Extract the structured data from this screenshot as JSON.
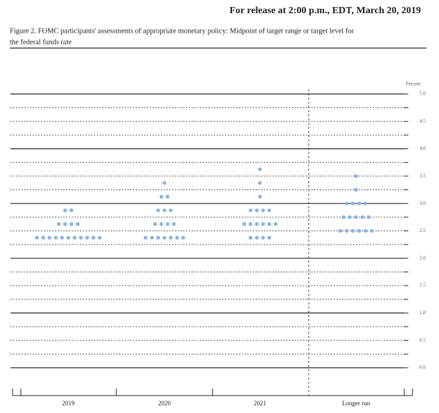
{
  "header": "For release at 2:00 p.m., EDT, March 20, 2019",
  "chart_data": {
    "type": "dot",
    "title": "Figure 2. FOMC participants' assessments of appropriate monetary policy: Midpoint of target range or target level for",
    "subtitle": "the federal funds rate",
    "y_label": "Percent",
    "categories": [
      "2019",
      "2020",
      "2021",
      "Longer run"
    ],
    "color": "#8db3dd",
    "ylim": [
      0,
      5
    ],
    "yticks": [
      {
        "value": 0,
        "label": "0.0"
      },
      {
        "value": 0.5,
        "label": "0.5"
      },
      {
        "value": 1,
        "label": "1.0"
      },
      {
        "value": 1.5,
        "label": "1.5"
      },
      {
        "value": 2,
        "label": "2.0"
      },
      {
        "value": 2.5,
        "label": "2.5"
      },
      {
        "value": 3,
        "label": "3.0"
      },
      {
        "value": 3.5,
        "label": "3.5"
      },
      {
        "value": 4,
        "label": "4.0"
      },
      {
        "value": 4.5,
        "label": "4.5"
      },
      {
        "value": 5,
        "label": "5.0"
      }
    ],
    "minor_yticks": [
      0.25,
      0.75,
      1.25,
      1.75,
      2.25,
      2.75,
      3.25,
      3.75,
      4.25,
      4.75
    ],
    "groups": [
      {
        "dots": [
          {
            "y": 2.375,
            "count": 11
          },
          {
            "y": 2.625,
            "count": 4
          },
          {
            "y": 2.875,
            "count": 2
          }
        ]
      },
      {
        "dots": [
          {
            "y": 2.375,
            "count": 7
          },
          {
            "y": 2.625,
            "count": 4
          },
          {
            "y": 2.875,
            "count": 3
          },
          {
            "y": 3.125,
            "count": 2
          },
          {
            "y": 3.375,
            "count": 1
          }
        ]
      },
      {
        "dots": [
          {
            "y": 2.375,
            "count": 4
          },
          {
            "y": 2.625,
            "count": 6
          },
          {
            "y": 2.875,
            "count": 4
          },
          {
            "y": 3.125,
            "count": 1
          },
          {
            "y": 3.375,
            "count": 1
          },
          {
            "y": 3.625,
            "count": 1
          }
        ]
      },
      {
        "dots": [
          {
            "y": 2.5,
            "count": 6
          },
          {
            "y": 2.75,
            "count": 5
          },
          {
            "y": 3,
            "count": 4
          },
          {
            "y": 3.25,
            "count": 1
          },
          {
            "y": 3.5,
            "count": 1
          }
        ]
      }
    ]
  }
}
